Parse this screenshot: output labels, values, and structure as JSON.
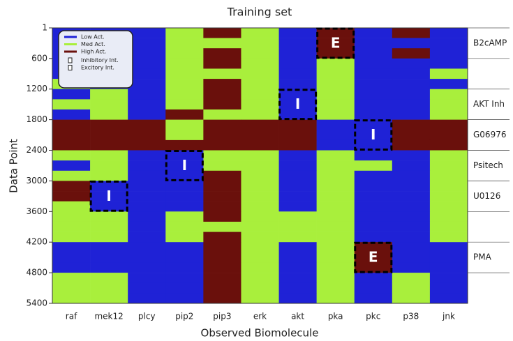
{
  "chart_data": {
    "type": "heatmap",
    "title": "Training set",
    "x_label": "Observed Biomolecule",
    "y_label": "Data Point",
    "categories": [
      "raf",
      "mek12",
      "plcy",
      "pip2",
      "pip3",
      "erk",
      "akt",
      "pka",
      "pkc",
      "p38",
      "jnk"
    ],
    "series": [
      {
        "name": "Low Act.",
        "color": "#1f22d6"
      },
      {
        "name": "Med Act.",
        "color": "#a9ef3c"
      },
      {
        "name": "High Act.",
        "color": "#6a100c"
      }
    ],
    "intervention_legend": [
      "Inhibitory Int.",
      "Excitory Int."
    ],
    "ybins": [
      1,
      200,
      400,
      600,
      800,
      1000,
      1200,
      1400,
      1600,
      1800,
      2000,
      2200,
      2400,
      2600,
      2800,
      3000,
      3200,
      3400,
      3600,
      3800,
      4000,
      4200,
      4400,
      4600,
      4800,
      5000,
      5200,
      5400
    ],
    "values": [
      [
        1,
        1,
        1,
        2,
        3,
        2,
        1,
        3,
        1,
        3,
        1
      ],
      [
        1,
        1,
        1,
        2,
        2,
        2,
        1,
        3,
        1,
        1,
        1
      ],
      [
        1,
        1,
        1,
        2,
        3,
        2,
        1,
        3,
        1,
        3,
        1
      ],
      [
        1,
        1,
        1,
        2,
        3,
        2,
        1,
        2,
        1,
        1,
        1
      ],
      [
        1,
        1,
        1,
        2,
        2,
        2,
        1,
        2,
        1,
        1,
        2
      ],
      [
        2,
        1,
        1,
        2,
        3,
        2,
        1,
        2,
        1,
        1,
        1
      ],
      [
        1,
        2,
        1,
        2,
        3,
        2,
        1,
        2,
        1,
        1,
        2
      ],
      [
        2,
        2,
        1,
        2,
        3,
        2,
        1,
        2,
        1,
        1,
        2
      ],
      [
        1,
        2,
        1,
        3,
        2,
        2,
        1,
        2,
        1,
        1,
        2
      ],
      [
        3,
        3,
        3,
        2,
        3,
        3,
        3,
        1,
        1,
        3,
        3
      ],
      [
        3,
        3,
        3,
        2,
        3,
        3,
        3,
        1,
        1,
        3,
        3
      ],
      [
        3,
        3,
        3,
        3,
        3,
        3,
        3,
        1,
        1,
        3,
        3
      ],
      [
        2,
        2,
        1,
        1,
        2,
        2,
        1,
        2,
        1,
        1,
        2
      ],
      [
        1,
        2,
        1,
        1,
        2,
        2,
        1,
        2,
        2,
        1,
        2
      ],
      [
        2,
        2,
        1,
        1,
        3,
        2,
        1,
        2,
        1,
        1,
        2
      ],
      [
        3,
        1,
        1,
        1,
        3,
        2,
        1,
        2,
        1,
        1,
        2
      ],
      [
        3,
        1,
        1,
        1,
        3,
        2,
        1,
        2,
        1,
        1,
        2
      ],
      [
        2,
        1,
        1,
        1,
        3,
        2,
        1,
        2,
        1,
        1,
        2
      ],
      [
        2,
        2,
        1,
        2,
        3,
        2,
        2,
        2,
        1,
        1,
        2
      ],
      [
        2,
        2,
        1,
        2,
        2,
        2,
        2,
        2,
        1,
        1,
        2
      ],
      [
        2,
        2,
        1,
        2,
        3,
        2,
        2,
        2,
        1,
        1,
        2
      ],
      [
        1,
        1,
        1,
        1,
        3,
        2,
        1,
        2,
        3,
        1,
        1
      ],
      [
        1,
        1,
        1,
        1,
        3,
        2,
        1,
        2,
        3,
        1,
        1
      ],
      [
        1,
        1,
        1,
        1,
        3,
        2,
        1,
        2,
        3,
        1,
        1
      ],
      [
        2,
        2,
        1,
        1,
        3,
        2,
        1,
        2,
        1,
        2,
        1
      ],
      [
        2,
        2,
        1,
        1,
        3,
        2,
        1,
        2,
        1,
        2,
        1
      ],
      [
        2,
        2,
        1,
        1,
        3,
        2,
        1,
        2,
        1,
        2,
        1
      ]
    ],
    "ylim": [
      1,
      5400
    ],
    "yticks": [
      1,
      600,
      1200,
      1800,
      2400,
      3000,
      3600,
      4200,
      4800,
      5400
    ],
    "experiments": [
      {
        "label": "B2cAMP",
        "start": 1,
        "end": 600
      },
      {
        "label": "AKT Inh",
        "start": 1200,
        "end": 1800
      },
      {
        "label": "G06976",
        "start": 1800,
        "end": 2400
      },
      {
        "label": "Psitech",
        "start": 2400,
        "end": 3000
      },
      {
        "label": "U0126",
        "start": 3000,
        "end": 3600
      },
      {
        "label": "PMA",
        "start": 4200,
        "end": 4800
      }
    ],
    "interventions": [
      {
        "label": "E",
        "column": "pka",
        "start": 1,
        "end": 600
      },
      {
        "label": "I",
        "column": "akt",
        "start": 1200,
        "end": 1800
      },
      {
        "label": "I",
        "column": "pkc",
        "start": 1800,
        "end": 2400
      },
      {
        "label": "I",
        "column": "pip2",
        "start": 2400,
        "end": 3000
      },
      {
        "label": "I",
        "column": "mek12",
        "start": 3000,
        "end": 3600
      },
      {
        "label": "E",
        "column": "pkc",
        "start": 4200,
        "end": 4800
      }
    ]
  }
}
